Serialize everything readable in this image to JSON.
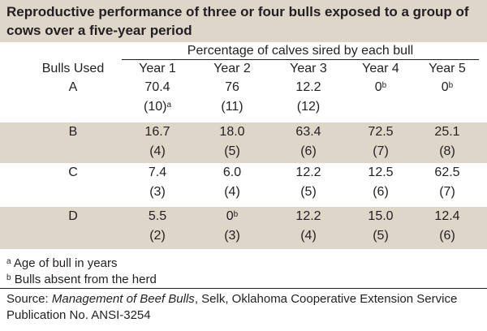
{
  "title": "Reproductive performance of three or four bulls exposed to a group of cows over a five-year period",
  "caption": "Percentage of calves sired by each bull",
  "headers": {
    "bulls": "Bulls Used",
    "years": [
      "Year 1",
      "Year 2",
      "Year 3",
      "Year 4",
      "Year 5"
    ]
  },
  "rows": [
    {
      "bull": "A",
      "values": [
        {
          "text": "70.4",
          "sup": ""
        },
        {
          "text": "76",
          "sup": ""
        },
        {
          "text": "12.2",
          "sup": ""
        },
        {
          "text": "0",
          "sup": "b"
        },
        {
          "text": "0",
          "sup": "b"
        }
      ],
      "ages": [
        {
          "text": "(10)",
          "sup": "a"
        },
        {
          "text": "(11)",
          "sup": ""
        },
        {
          "text": "(12)",
          "sup": ""
        },
        {
          "text": "",
          "sup": ""
        },
        {
          "text": "",
          "sup": ""
        }
      ]
    },
    {
      "bull": "B",
      "values": [
        {
          "text": "16.7",
          "sup": ""
        },
        {
          "text": "18.0",
          "sup": ""
        },
        {
          "text": "63.4",
          "sup": ""
        },
        {
          "text": "72.5",
          "sup": ""
        },
        {
          "text": "25.1",
          "sup": ""
        }
      ],
      "ages": [
        {
          "text": "(4)",
          "sup": ""
        },
        {
          "text": "(5)",
          "sup": ""
        },
        {
          "text": "(6)",
          "sup": ""
        },
        {
          "text": "(7)",
          "sup": ""
        },
        {
          "text": "(8)",
          "sup": ""
        }
      ]
    },
    {
      "bull": "C",
      "values": [
        {
          "text": "7.4",
          "sup": ""
        },
        {
          "text": "6.0",
          "sup": ""
        },
        {
          "text": "12.2",
          "sup": ""
        },
        {
          "text": "12.5",
          "sup": ""
        },
        {
          "text": "62.5",
          "sup": ""
        }
      ],
      "ages": [
        {
          "text": "(3)",
          "sup": ""
        },
        {
          "text": "(4)",
          "sup": ""
        },
        {
          "text": "(5)",
          "sup": ""
        },
        {
          "text": "(6)",
          "sup": ""
        },
        {
          "text": "(7)",
          "sup": ""
        }
      ]
    },
    {
      "bull": "D",
      "values": [
        {
          "text": "5.5",
          "sup": ""
        },
        {
          "text": "0",
          "sup": "b"
        },
        {
          "text": "12.2",
          "sup": ""
        },
        {
          "text": "15.0",
          "sup": ""
        },
        {
          "text": "12.4",
          "sup": ""
        }
      ],
      "ages": [
        {
          "text": "(2)",
          "sup": ""
        },
        {
          "text": "(3)",
          "sup": ""
        },
        {
          "text": "(4)",
          "sup": ""
        },
        {
          "text": "(5)",
          "sup": ""
        },
        {
          "text": "(6)",
          "sup": ""
        }
      ]
    }
  ],
  "footnotes": [
    {
      "mark": "a",
      "text": "Age of bull in years"
    },
    {
      "mark": "b",
      "text": "Bulls absent from the herd"
    }
  ],
  "source": {
    "prefix": "Source: ",
    "book": "Management of Beef Bulls",
    "rest": ", Selk, Oklahoma Cooperative Extension Service Publication No. ANSI-3254"
  },
  "colors": {
    "band": "#dfd6ca",
    "text": "#231f20"
  }
}
